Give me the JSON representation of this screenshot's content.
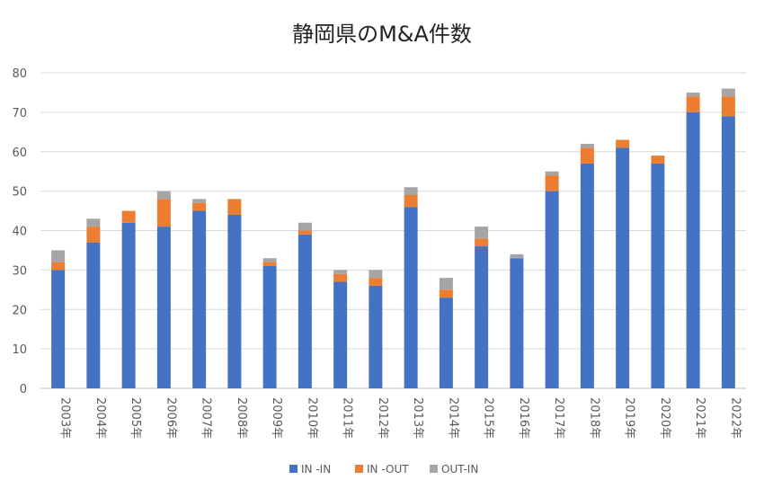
{
  "chart_data": {
    "type": "bar",
    "stacked": true,
    "title": "静岡県のM&A件数",
    "categories": [
      "2003年",
      "2004年",
      "2005年",
      "2006年",
      "2007年",
      "2008年",
      "2009年",
      "2010年",
      "2011年",
      "2012年",
      "2013年",
      "2014年",
      "2015年",
      "2016年",
      "2017年",
      "2018年",
      "2019年",
      "2020年",
      "2021年",
      "2022年"
    ],
    "series": [
      {
        "name": "IN -IN",
        "color": "#4472C4",
        "values": [
          30,
          37,
          42,
          41,
          45,
          44,
          31,
          39,
          27,
          26,
          46,
          23,
          36,
          33,
          50,
          57,
          61,
          57,
          70,
          69
        ]
      },
      {
        "name": "IN -OUT",
        "color": "#ED7D31",
        "values": [
          2,
          4,
          3,
          7,
          2,
          4,
          1,
          1,
          2,
          2,
          3,
          2,
          2,
          0,
          4,
          4,
          2,
          2,
          4,
          5
        ]
      },
      {
        "name": "OUT-IN",
        "color": "#A5A5A5",
        "values": [
          3,
          2,
          0,
          2,
          1,
          0,
          1,
          2,
          1,
          2,
          2,
          3,
          3,
          1,
          1,
          1,
          0,
          0,
          1,
          2
        ]
      }
    ],
    "ylim": [
      0,
      80
    ],
    "yticks": [
      0,
      10,
      20,
      30,
      40,
      50,
      60,
      70,
      80
    ],
    "grid": true,
    "legend_position": "bottom"
  }
}
